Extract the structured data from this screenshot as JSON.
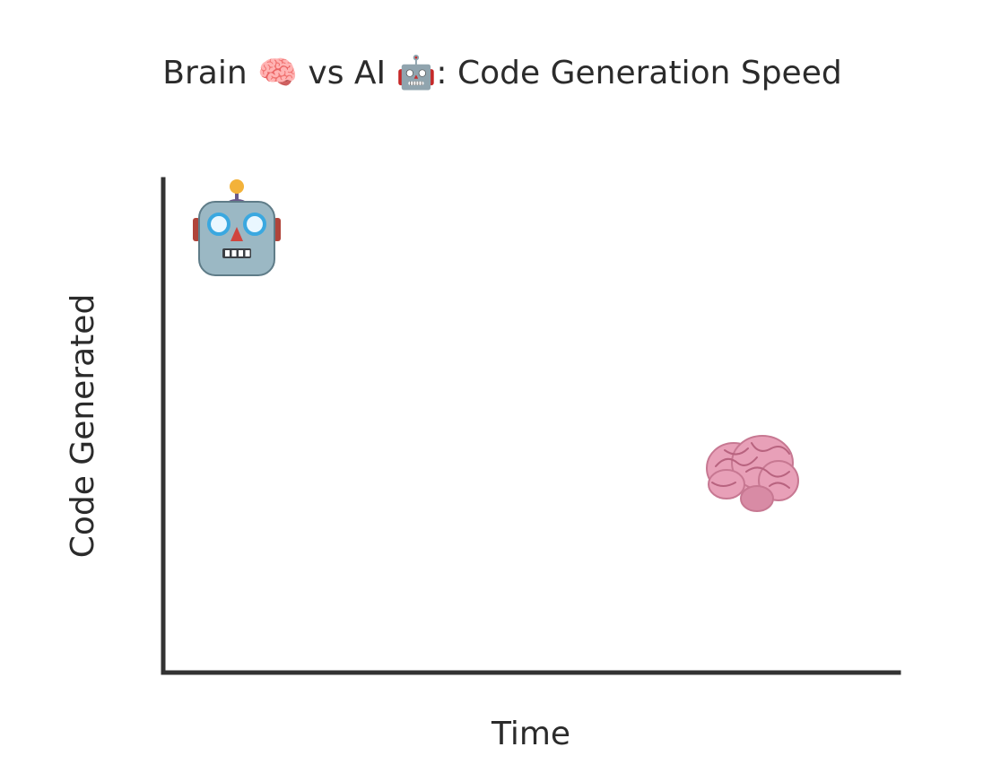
{
  "chart_data": {
    "type": "scatter",
    "title": "Brain 🧠 vs AI 🤖: Code Generation Speed",
    "xlabel": "Time",
    "ylabel": "Code Generated",
    "xticks": [],
    "yticks": [],
    "grid": false,
    "legend": "none",
    "xlim": [
      0,
      10
    ],
    "ylim": [
      0,
      10
    ],
    "points": [
      {
        "x": 1,
        "y": 9,
        "marker": "🤖",
        "marker_icon": "robot-icon"
      },
      {
        "x": 8,
        "y": 4,
        "marker": "🧠",
        "marker_icon": "brain-icon"
      }
    ],
    "colors": {
      "axis": "#333333",
      "text": "#2b2b2b",
      "brain": "#e8a0b8",
      "robot": "#9bb8c4"
    }
  }
}
